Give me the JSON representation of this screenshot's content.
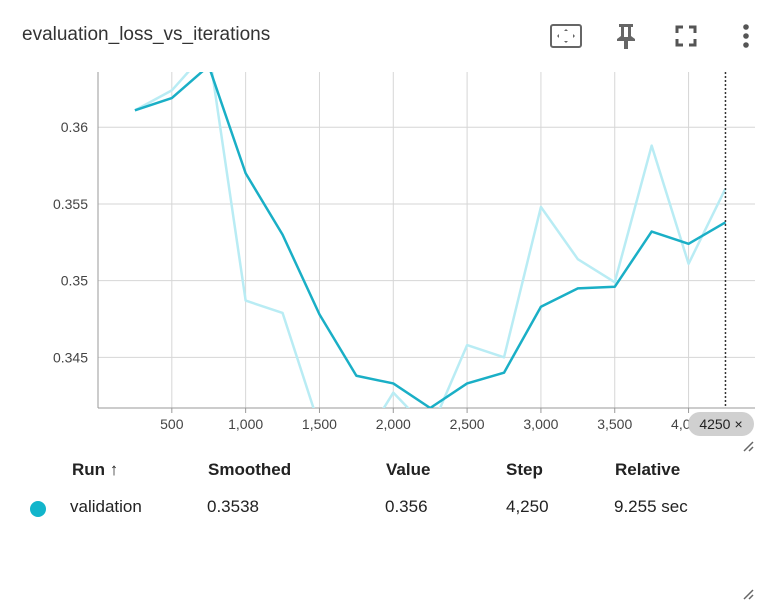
{
  "header": {
    "title": "evaluation_loss_vs_iterations"
  },
  "icons": [
    "fit-domain-icon",
    "pin-icon",
    "fullscreen-icon",
    "more-vert-icon"
  ],
  "colors": {
    "smoothed": "#1aafc6",
    "raw": "#b9ecf4",
    "grid": "#d6d6d6",
    "dot": "#12b5cb"
  },
  "chart_data": {
    "type": "line",
    "title": "evaluation_loss_vs_iterations",
    "xlabel": "",
    "ylabel": "",
    "xlim": [
      0,
      4450
    ],
    "ylim": [
      0.3417,
      0.3636
    ],
    "x_ticks": [
      500,
      1000,
      1500,
      2000,
      2500,
      3000,
      3500,
      4000
    ],
    "x_tick_labels": [
      "500",
      "1,000",
      "1,500",
      "2,000",
      "2,500",
      "3,000",
      "3,500",
      "4,000"
    ],
    "y_ticks": [
      0.345,
      0.35,
      0.355,
      0.36
    ],
    "y_tick_labels": [
      "0.345",
      "0.35",
      "0.355",
      "0.36"
    ],
    "grid": true,
    "cursor_step": 4250,
    "cursor_label": "4250",
    "series": [
      {
        "name": "validation",
        "style": "raw",
        "x": [
          250,
          500,
          750,
          1000,
          1250,
          1500,
          1750,
          2000,
          2250,
          2500,
          2750,
          3000,
          3250,
          3500,
          3750,
          4000,
          4250
        ],
        "y": [
          0.3611,
          0.3624,
          0.3651,
          0.3487,
          0.3479,
          0.3405,
          0.3388,
          0.3427,
          0.3402,
          0.3458,
          0.345,
          0.3548,
          0.3514,
          0.3499,
          0.3588,
          0.3511,
          0.356
        ]
      },
      {
        "name": "validation",
        "style": "smoothed",
        "x": [
          250,
          500,
          750,
          1000,
          1250,
          1500,
          1750,
          2000,
          2250,
          2500,
          2750,
          3000,
          3250,
          3500,
          3750,
          4000,
          4250
        ],
        "y": [
          0.3611,
          0.3619,
          0.364,
          0.357,
          0.353,
          0.3478,
          0.3438,
          0.3433,
          0.3417,
          0.3433,
          0.344,
          0.3483,
          0.3495,
          0.3496,
          0.3532,
          0.3524,
          0.3538
        ]
      }
    ]
  },
  "table": {
    "headers": {
      "run": "Run ↑",
      "smoothed": "Smoothed",
      "value": "Value",
      "step": "Step",
      "relative": "Relative"
    },
    "rows": [
      {
        "run": "validation",
        "smoothed": "0.3538",
        "value": "0.356",
        "step": "4,250",
        "relative": "9.255 sec"
      }
    ]
  }
}
